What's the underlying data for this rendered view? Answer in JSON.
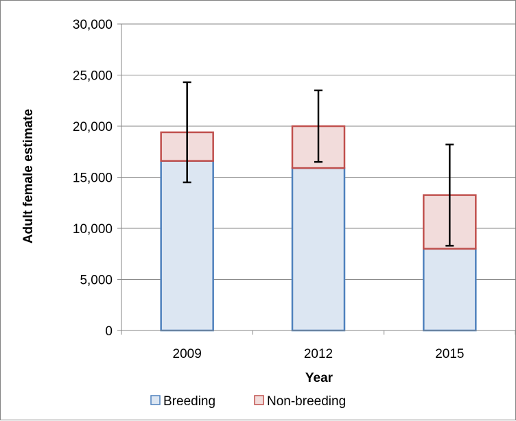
{
  "chart_data": {
    "type": "bar",
    "stacked": true,
    "title": "",
    "xlabel": "Year",
    "ylabel": "Adult female estimate",
    "categories": [
      "2009",
      "2012",
      "2015"
    ],
    "ylim": [
      0,
      30000
    ],
    "yticks": [
      0,
      5000,
      10000,
      15000,
      20000,
      25000,
      30000
    ],
    "ytick_labels": [
      "0",
      "5,000",
      "10,000",
      "15,000",
      "20,000",
      "25,000",
      "30,000"
    ],
    "grid": "horizontal",
    "legend_position": "bottom",
    "series": [
      {
        "name": "Breeding",
        "values": [
          16600,
          15900,
          8000
        ],
        "fill": "#dce6f2",
        "stroke": "#4f81bd"
      },
      {
        "name": "Non-breeding",
        "values": [
          2800,
          4100,
          5250
        ],
        "fill": "#f2dcdb",
        "stroke": "#c0504d"
      }
    ],
    "error_bars": [
      {
        "category": "2009",
        "low": 14500,
        "high": 24300
      },
      {
        "category": "2012",
        "low": 16500,
        "high": 23500
      },
      {
        "category": "2015",
        "low": 8300,
        "high": 18200
      }
    ],
    "error_bar_color": "#000000"
  }
}
